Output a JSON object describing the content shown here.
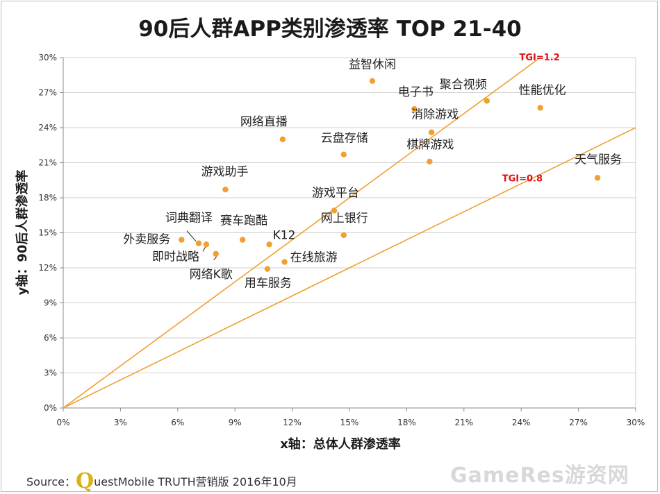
{
  "title": "90后人群APP类别渗透率 TOP 21-40",
  "footer": {
    "source_prefix": "Source：",
    "logo_letter": "Q",
    "source_rest": "uestMobile TRUTH营销版 2016年10月"
  },
  "watermark": "GameRes游资网",
  "chart_data": {
    "type": "scatter",
    "title": "90后人群APP类别渗透率 TOP 21-40",
    "xlabel": "x轴：总体人群渗透率",
    "ylabel": "y轴：90后人群渗透率",
    "xlim": [
      0,
      30
    ],
    "ylim": [
      0,
      30
    ],
    "x_ticks": [
      "0%",
      "3%",
      "6%",
      "9%",
      "12%",
      "15%",
      "18%",
      "21%",
      "24%",
      "27%",
      "30%"
    ],
    "y_ticks": [
      "0%",
      "3%",
      "6%",
      "9%",
      "12%",
      "15%",
      "18%",
      "21%",
      "24%",
      "27%",
      "30%"
    ],
    "grid": "horizontal",
    "point_color": "#f0a030",
    "line_color": "#f0a030",
    "label_color_tgi": "#e01010",
    "points": [
      {
        "name": "益智休闲",
        "x": 16.2,
        "y": 28.0
      },
      {
        "name": "聚合视频",
        "x": 22.2,
        "y": 26.3
      },
      {
        "name": "性能优化",
        "x": 25.0,
        "y": 25.7
      },
      {
        "name": "电子书",
        "x": 18.4,
        "y": 25.6
      },
      {
        "name": "消除游戏",
        "x": 19.3,
        "y": 23.6
      },
      {
        "name": "网络直播",
        "x": 11.5,
        "y": 23.0
      },
      {
        "name": "云盘存储",
        "x": 14.7,
        "y": 21.7
      },
      {
        "name": "棋牌游戏",
        "x": 19.2,
        "y": 21.1
      },
      {
        "name": "天气服务",
        "x": 28.0,
        "y": 19.7
      },
      {
        "name": "游戏助手",
        "x": 8.5,
        "y": 18.7
      },
      {
        "name": "游戏平台",
        "x": 14.2,
        "y": 16.9
      },
      {
        "name": "网上银行",
        "x": 14.7,
        "y": 14.8
      },
      {
        "name": "赛车跑酷",
        "x": 9.4,
        "y": 14.4
      },
      {
        "name": "外卖服务",
        "x": 6.2,
        "y": 14.4
      },
      {
        "name": "词典翻译",
        "x": 7.1,
        "y": 14.1
      },
      {
        "name": "K12",
        "x": 10.8,
        "y": 14.0
      },
      {
        "name": "即时战略",
        "x": 7.5,
        "y": 14.0
      },
      {
        "name": "网络K歌",
        "x": 8.0,
        "y": 13.2
      },
      {
        "name": "在线旅游",
        "x": 11.6,
        "y": 12.5
      },
      {
        "name": "用车服务",
        "x": 10.7,
        "y": 11.9
      }
    ],
    "reference_lines": [
      {
        "name": "TGI=1.2",
        "slope": 1.2
      },
      {
        "name": "TGI=0.8",
        "slope": 0.8
      }
    ]
  }
}
